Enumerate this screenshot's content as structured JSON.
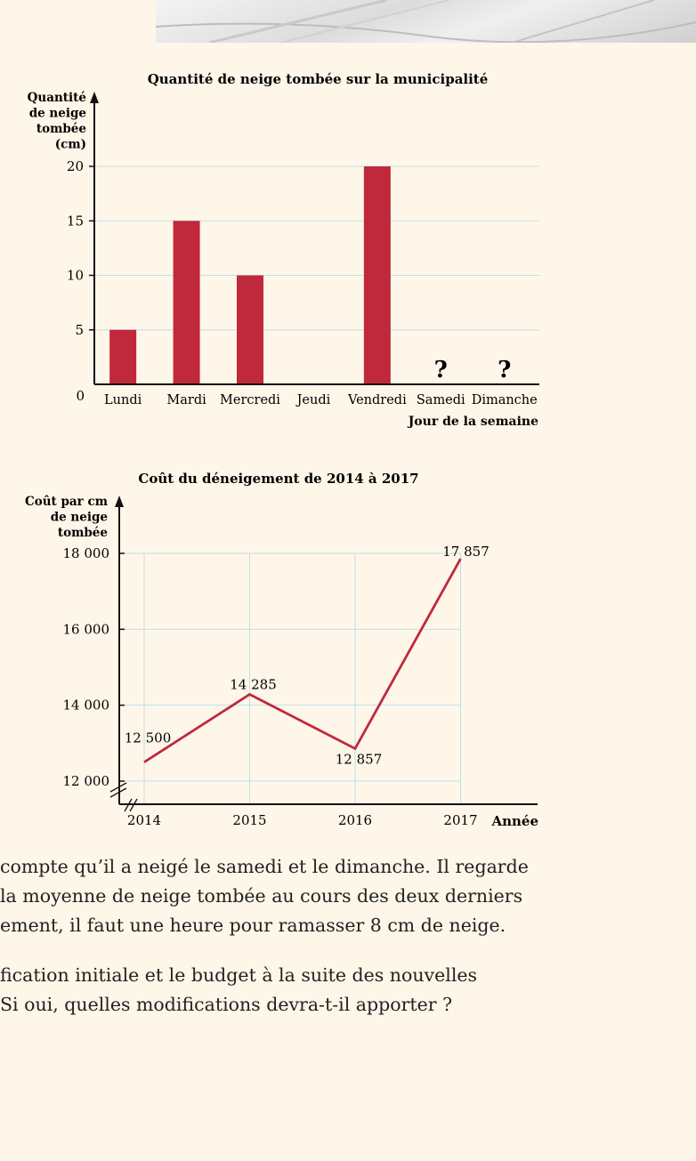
{
  "colors": {
    "bar": "#c0283c",
    "line": "#c0283c",
    "grid": "#bfe0ec",
    "axis": "#111111",
    "background": "#fef6e8"
  },
  "photo_icon": "snow-road-photo",
  "charts": [
    {
      "chart_data": {
        "type": "bar",
        "title": "Quantité de neige tombée sur la municipalité",
        "ylabel_lines": [
          "Quantité",
          "de neige",
          "tombée",
          "(cm)"
        ],
        "xlabel": "Jour de la semaine",
        "categories": [
          "Lundi",
          "Mardi",
          "Mercredi",
          "Jeudi",
          "Vendredi",
          "Samedi",
          "Dimanche"
        ],
        "values": [
          5,
          15,
          10,
          0,
          20,
          null,
          null
        ],
        "unknown_marker": "?",
        "yticks": [
          0,
          5,
          10,
          15,
          20
        ],
        "ylim": [
          0,
          20
        ],
        "grid": true
      }
    },
    {
      "chart_data": {
        "type": "line",
        "title": "Coût du déneigement de 2014 à 2017",
        "ylabel_lines": [
          "Coût par cm",
          "de neige",
          "tombée"
        ],
        "xlabel": "Année",
        "x": [
          "2014",
          "2015",
          "2016",
          "2017"
        ],
        "values": [
          12500,
          14285,
          12857,
          17857
        ],
        "data_labels": [
          "12 500",
          "14 285",
          "12 857",
          "17 857"
        ],
        "yticks": [
          12000,
          14000,
          16000,
          18000
        ],
        "ytick_labels": [
          "12 000",
          "14 000",
          "16 000",
          "18 000"
        ],
        "ylim": [
          12000,
          18000
        ],
        "axis_break": true,
        "grid": true
      }
    }
  ],
  "text": {
    "para1": [
      "compte qu’il a neigé le samedi et le dimanche. Il regarde",
      "la moyenne de neige tombée au cours des deux derniers",
      "ement, il faut une heure pour ramasser 8 cm de neige."
    ],
    "para2": [
      "fication initiale et le budget à la suite des nouvelles",
      "Si oui, quelles modifications devra-t-il apporter ?"
    ]
  }
}
